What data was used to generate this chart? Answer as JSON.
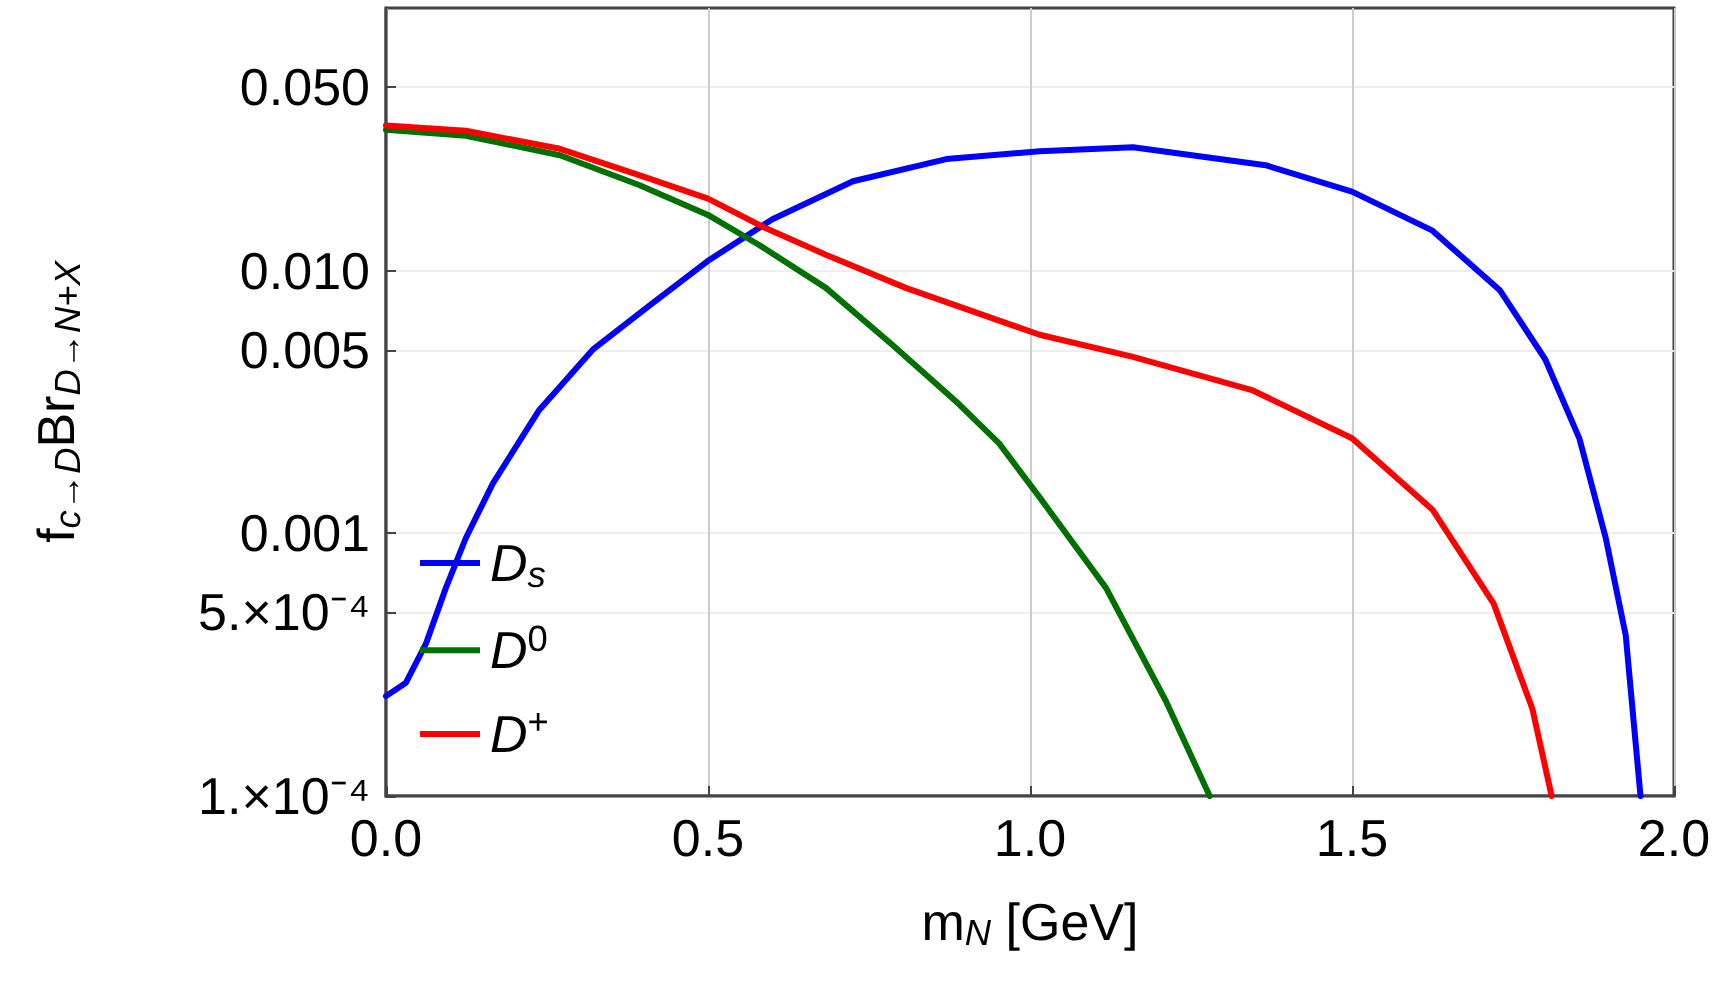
{
  "chart_data": {
    "type": "line",
    "xlabel": "m$_{N}$ [GeV]",
    "ylabel": "f$_{c→D}$Br$_{D→N+X}$",
    "log": "y",
    "grid": true,
    "legend": "bottom left",
    "marker": "none",
    "line_style": "solid",
    "xlim": [
      0,
      2.0
    ],
    "xticks": [
      {
        "value": 0,
        "label": "0.0"
      },
      {
        "value": 0.5,
        "label": "0.5"
      },
      {
        "value": 1,
        "label": "1.0"
      },
      {
        "value": 1.5,
        "label": "1.5"
      },
      {
        "value": 2,
        "label": "2.0"
      }
    ],
    "ylim": [
      0.0001,
      0.1
    ],
    "yticks": [
      {
        "value": 0.0001,
        "label": "1.×10⁻⁴"
      },
      {
        "value": 0.0005,
        "label": "5.×10⁻⁴"
      },
      {
        "value": 0.001,
        "label": "0.001"
      },
      {
        "value": 0.005,
        "label": "0.005"
      },
      {
        "value": 0.01,
        "label": "0.010"
      },
      {
        "value": 0.05,
        "label": "0.050"
      }
    ],
    "series": [
      {
        "name": "D$_{s}$",
        "color": "#0000ff",
        "x": [
          0,
          0.031,
          0.062,
          0.093,
          0.124,
          0.166,
          0.238,
          0.321,
          0.41,
          0.5,
          0.6,
          0.725,
          0.87,
          1.015,
          1.16,
          1.366,
          1.5,
          1.625,
          1.73,
          1.8,
          1.853,
          1.894,
          1.925,
          1.948
        ],
        "values": [
          0.00024,
          0.00027,
          0.00038,
          0.00062,
          0.00096,
          0.00155,
          0.00295,
          0.005,
          0.0074,
          0.0109,
          0.0157,
          0.0219,
          0.0266,
          0.0285,
          0.0295,
          0.0252,
          0.02,
          0.0142,
          0.0084,
          0.0046,
          0.0023,
          0.00096,
          0.00041,
          0.0001
        ]
      },
      {
        "name": "D$^{0}$",
        "color": "#007000",
        "x": [
          0,
          0.124,
          0.27,
          0.393,
          0.5,
          0.58,
          0.683,
          0.787,
          0.89,
          0.952,
          1.015,
          1.118,
          1.211,
          1.279
        ],
        "values": [
          0.0344,
          0.0326,
          0.0275,
          0.0212,
          0.0163,
          0.0125,
          0.0086,
          0.0052,
          0.0031,
          0.0022,
          0.00137,
          0.00062,
          0.00023,
          0.0001
        ]
      },
      {
        "name": "D$^{+}$",
        "color": "#ff0000",
        "x": [
          0,
          0.124,
          0.27,
          0.393,
          0.5,
          0.59,
          0.683,
          0.807,
          1.015,
          1.16,
          1.346,
          1.5,
          1.625,
          1.72,
          1.78,
          1.81
        ],
        "values": [
          0.0357,
          0.0341,
          0.0291,
          0.0231,
          0.0188,
          0.0145,
          0.0115,
          0.0086,
          0.0057,
          0.0047,
          0.0035,
          0.0023,
          0.00123,
          0.00054,
          0.000215,
          0.0001
        ]
      }
    ]
  }
}
